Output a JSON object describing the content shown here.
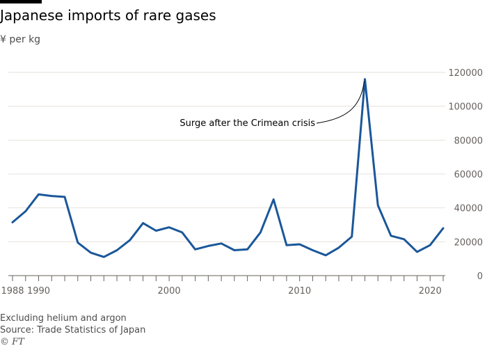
{
  "header": {
    "title": "Japanese imports of rare gases",
    "subtitle": "¥ per kg"
  },
  "footer": {
    "note": "Excluding helium and argon",
    "source": "Source: Trade Statistics of Japan",
    "credit": "© FT"
  },
  "colors": {
    "line": "#1a5799",
    "grid": "#e6e1db",
    "axis_text": "#66605c",
    "axis_line": "#66605c"
  },
  "chart_data": {
    "type": "line",
    "title": "Japanese imports of rare gases",
    "ylabel": "¥ per kg",
    "xlabel": "",
    "x_tick_labels": [
      "1988",
      "1990",
      "2000",
      "2010",
      "2020"
    ],
    "y_ticks": [
      0,
      20000,
      40000,
      60000,
      80000,
      100000,
      120000
    ],
    "ylim": [
      0,
      120000
    ],
    "xlim": [
      1988,
      2021
    ],
    "grid": true,
    "y_axis_position": "right",
    "annotations": [
      {
        "text": "Surge after the Crimean crisis",
        "x": 2015,
        "y": 116000
      }
    ],
    "series": [
      {
        "x": [
          1988,
          1989,
          1990,
          1991,
          1992,
          1993,
          1994,
          1995,
          1996,
          1997,
          1998,
          1999,
          2000,
          2001,
          2002,
          2003,
          2004,
          2005,
          2006,
          2007,
          2008,
          2009,
          2010,
          2011,
          2012,
          2013,
          2014,
          2015,
          2016,
          2017,
          2018,
          2019,
          2020,
          2021
        ],
        "values": [
          31500,
          38000,
          48000,
          47000,
          46500,
          19500,
          13500,
          11000,
          15000,
          21000,
          31000,
          26500,
          28500,
          25500,
          15500,
          17500,
          19000,
          15000,
          15500,
          25500,
          45000,
          18000,
          18500,
          15000,
          12000,
          16500,
          23000,
          116000,
          41500,
          23500,
          21500,
          14000,
          18000,
          28000
        ]
      }
    ]
  }
}
